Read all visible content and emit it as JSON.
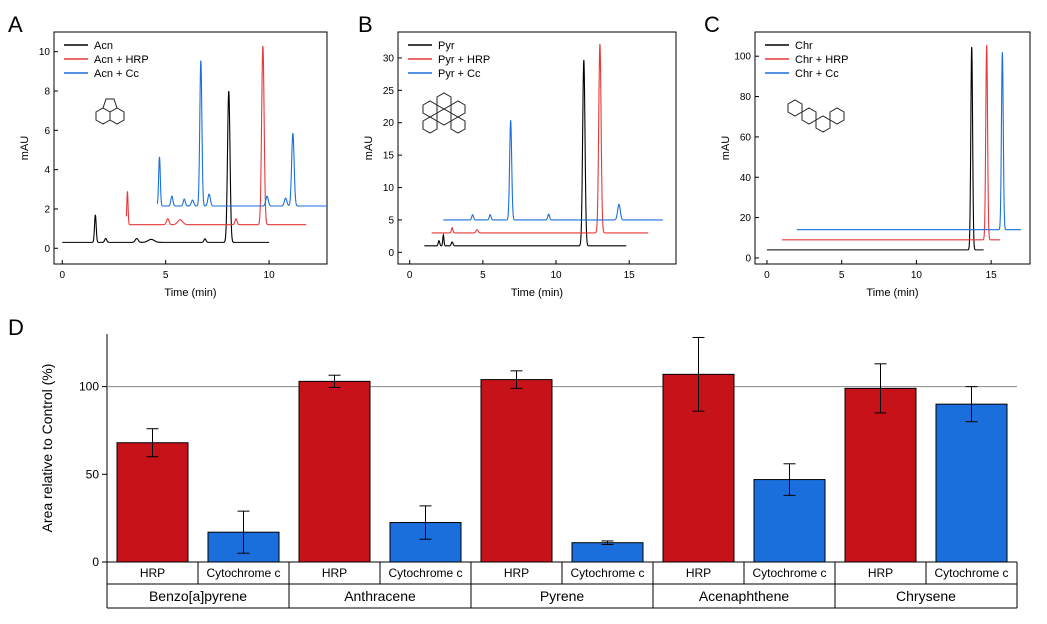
{
  "colors": {
    "control": "#000000",
    "hrp": "#e8383a",
    "cc": "#1a6fdc",
    "bar_hrp": "#c8121a",
    "bar_cc": "#1a6fdc"
  },
  "chart_data": [
    {
      "id": "A",
      "type": "line",
      "panel_label": "A",
      "xlabel": "Time (min)",
      "ylabel": "mAU",
      "xlim": [
        -0.4,
        12.8
      ],
      "ylim": [
        -0.8,
        11
      ],
      "xticks": [
        0,
        5,
        10
      ],
      "yticks": [
        0,
        2,
        4,
        6,
        8,
        10
      ],
      "legend_position": "top-left",
      "structure_icon": "acenaphthene-structure-icon",
      "series": [
        {
          "name": "Acn",
          "color": "#000000",
          "x_range": [
            0,
            10
          ],
          "baseline": 0.3,
          "peaks": [
            [
              1.6,
              1.4,
              0.04
            ],
            [
              2.1,
              0.2,
              0.05
            ],
            [
              3.6,
              0.2,
              0.07
            ],
            [
              4.3,
              0.15,
              0.15
            ],
            [
              6.9,
              0.18,
              0.05
            ],
            [
              8.05,
              7.7,
              0.06
            ]
          ]
        },
        {
          "name": "Acn + HRP",
          "color": "#e8383a",
          "x_range": [
            3.1,
            11.8
          ],
          "baseline": 1.2,
          "peaks": [
            [
              3.15,
              1.7,
              0.03
            ],
            [
              5.1,
              0.3,
              0.06
            ],
            [
              5.7,
              0.25,
              0.12
            ],
            [
              8.4,
              0.3,
              0.05
            ],
            [
              9.7,
              9.1,
              0.06
            ]
          ]
        },
        {
          "name": "Acn + Cc",
          "color": "#1a6fdc",
          "x_range": [
            4.6,
            12.8
          ],
          "baseline": 2.15,
          "peaks": [
            [
              4.7,
              2.5,
              0.04
            ],
            [
              5.3,
              0.5,
              0.05
            ],
            [
              5.9,
              0.35,
              0.05
            ],
            [
              6.3,
              0.3,
              0.06
            ],
            [
              6.7,
              7.4,
              0.05
            ],
            [
              7.1,
              0.6,
              0.06
            ],
            [
              9.9,
              0.5,
              0.06
            ],
            [
              10.8,
              0.4,
              0.06
            ],
            [
              11.15,
              3.7,
              0.06
            ]
          ]
        }
      ]
    },
    {
      "id": "B",
      "type": "line",
      "panel_label": "B",
      "xlabel": "Time (min)",
      "ylabel": "mAU",
      "xlim": [
        -0.8,
        18.2
      ],
      "ylim": [
        -1.8,
        34
      ],
      "xticks": [
        0,
        5,
        10,
        15
      ],
      "yticks": [
        0,
        5,
        10,
        15,
        20,
        25,
        30
      ],
      "legend_position": "top-left",
      "structure_icon": "pyrene-structure-icon",
      "series": [
        {
          "name": "Pyr",
          "color": "#000000",
          "x_range": [
            1.0,
            14.8
          ],
          "baseline": 1.0,
          "peaks": [
            [
              2.0,
              0.8,
              0.05
            ],
            [
              2.3,
              1.7,
              0.04
            ],
            [
              2.9,
              0.6,
              0.06
            ],
            [
              11.9,
              28.7,
              0.08
            ]
          ]
        },
        {
          "name": "Pyr + HRP",
          "color": "#e8383a",
          "x_range": [
            1.5,
            16.3
          ],
          "baseline": 3.0,
          "peaks": [
            [
              2.9,
              0.8,
              0.05
            ],
            [
              4.6,
              0.5,
              0.07
            ],
            [
              13.0,
              29.2,
              0.08
            ]
          ]
        },
        {
          "name": "Pyr + Cc",
          "color": "#1a6fdc",
          "x_range": [
            2.3,
            17.3
          ],
          "baseline": 5.0,
          "peaks": [
            [
              4.3,
              0.8,
              0.06
            ],
            [
              5.5,
              0.8,
              0.06
            ],
            [
              6.9,
              15.4,
              0.07
            ],
            [
              9.5,
              0.9,
              0.06
            ],
            [
              14.3,
              2.4,
              0.09
            ]
          ]
        }
      ]
    },
    {
      "id": "C",
      "type": "line",
      "panel_label": "C",
      "xlabel": "Time (min)",
      "ylabel": "mAU",
      "xlim": [
        -0.8,
        17.6
      ],
      "ylim": [
        -3,
        112
      ],
      "xticks": [
        0,
        5,
        10,
        15
      ],
      "yticks": [
        0,
        20,
        40,
        60,
        80,
        100
      ],
      "legend_position": "top-left",
      "structure_icon": "chrysene-structure-icon",
      "series": [
        {
          "name": "Chr",
          "color": "#000000",
          "x_range": [
            0,
            14.5
          ],
          "baseline": 4.0,
          "peaks": [
            [
              13.7,
              101,
              0.06
            ]
          ]
        },
        {
          "name": "Chr + HRP",
          "color": "#e8383a",
          "x_range": [
            1.0,
            15.6
          ],
          "baseline": 9.0,
          "peaks": [
            [
              14.7,
              97,
              0.06
            ]
          ]
        },
        {
          "name": "Chr + Cc",
          "color": "#1a6fdc",
          "x_range": [
            2.0,
            17.0
          ],
          "baseline": 14.0,
          "peaks": [
            [
              15.75,
              88,
              0.06
            ]
          ]
        }
      ]
    },
    {
      "id": "D",
      "type": "bar",
      "panel_label": "D",
      "ylabel": "Area relative to Control (%)",
      "ylim": [
        0,
        130
      ],
      "yticks": [
        0,
        50,
        100
      ],
      "reference_line": 100,
      "groups": [
        "Benzo[a]pyrene",
        "Anthracene",
        "Pyrene",
        "Acenaphthene",
        "Chrysene"
      ],
      "sub_categories": [
        "HRP",
        "Cytochrome c"
      ],
      "series": [
        {
          "name": "HRP",
          "color": "#c8121a",
          "values": [
            68,
            103,
            104,
            107,
            99
          ],
          "errors": [
            8,
            3.5,
            5,
            21,
            14
          ]
        },
        {
          "name": "Cytochrome c",
          "color": "#1a6fdc",
          "values": [
            17,
            22.5,
            11,
            47,
            90
          ],
          "errors": [
            12,
            9.5,
            1,
            9,
            10
          ]
        }
      ]
    }
  ]
}
